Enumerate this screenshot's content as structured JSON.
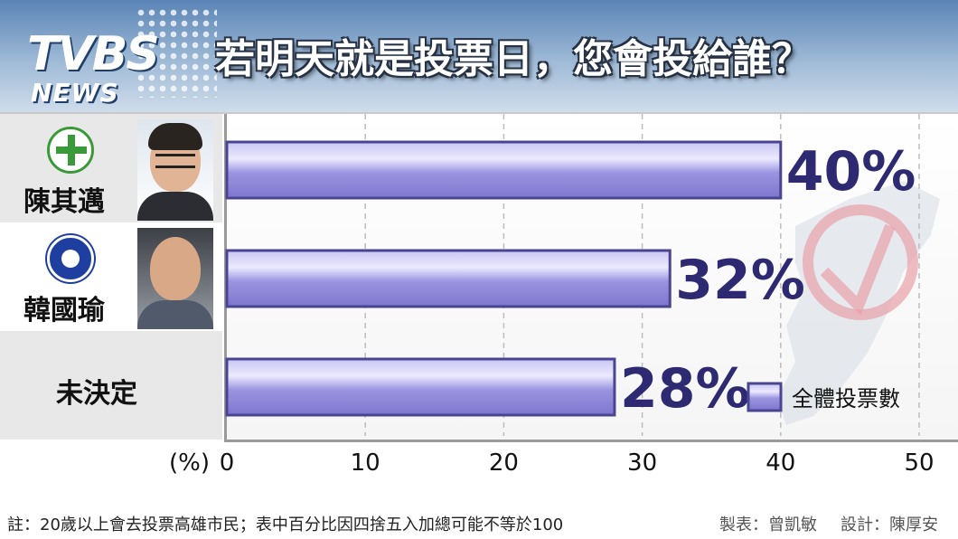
{
  "header": {
    "logo_main": "TVBS",
    "logo_sub": "NEWS",
    "title": "若明天就是投票日，您會投給誰？"
  },
  "candidates": [
    {
      "name": "陳其邁",
      "party_icon": "dpp-emblem-icon"
    },
    {
      "name": "韓國瑜",
      "party_icon": "kmt-emblem-icon"
    },
    {
      "name": "未決定"
    }
  ],
  "chart_data": {
    "type": "bar",
    "orientation": "horizontal",
    "categories": [
      "陳其邁",
      "韓國瑜",
      "未決定"
    ],
    "values": [
      40,
      32,
      28
    ],
    "value_labels": [
      "40%",
      "32%",
      "28%"
    ],
    "xlabel": "(%)",
    "xlim": [
      0,
      50
    ],
    "xticks": [
      "0",
      "10",
      "20",
      "30",
      "40",
      "50"
    ],
    "grid": true,
    "legend": {
      "label": "全體投票數",
      "placement": "bottom-right"
    },
    "bar_color": "#8a84d8",
    "bar_border": "#4a4590",
    "label_color": "#2e2a72"
  },
  "footer": {
    "note": "註：20歲以上會去投票高雄市民；表中百分比因四捨五入加總可能不等於100",
    "made_by": "製表：曾凱敏",
    "designed_by": "設計：陳厚安"
  }
}
